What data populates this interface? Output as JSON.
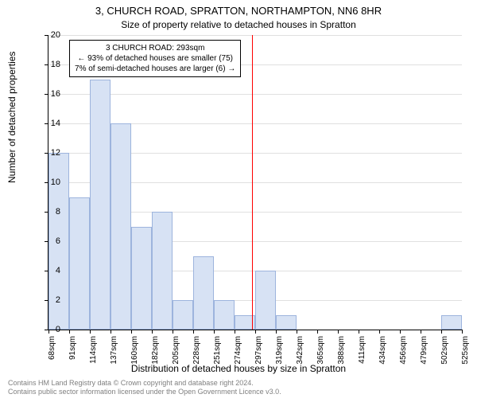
{
  "chart": {
    "type": "histogram",
    "title_main": "3, CHURCH ROAD, SPRATTON, NORTHAMPTON, NN6 8HR",
    "title_sub": "Size of property relative to detached houses in Spratton",
    "x_axis_label": "Distribution of detached houses by size in Spratton",
    "y_axis_label": "Number of detached properties",
    "background_color": "#ffffff",
    "grid_color": "#e0e0e0",
    "bar_fill": "#d7e2f4",
    "bar_border": "#9db4dd",
    "ref_line_color": "#ff0000",
    "ylim": [
      0,
      20
    ],
    "ytick_step": 2,
    "x_ticks": [
      "68sqm",
      "91sqm",
      "114sqm",
      "137sqm",
      "160sqm",
      "182sqm",
      "205sqm",
      "228sqm",
      "251sqm",
      "274sqm",
      "297sqm",
      "319sqm",
      "342sqm",
      "365sqm",
      "388sqm",
      "411sqm",
      "434sqm",
      "456sqm",
      "479sqm",
      "502sqm",
      "525sqm"
    ],
    "values": [
      12,
      9,
      17,
      14,
      7,
      8,
      2,
      5,
      2,
      1,
      4,
      1,
      0,
      0,
      0,
      0,
      0,
      0,
      0,
      1
    ],
    "ref_value_x": 293,
    "x_min": 68,
    "x_max": 525,
    "annotation": {
      "line1": "3 CHURCH ROAD: 293sqm",
      "line2": "← 93% of detached houses are smaller (75)",
      "line3": "7% of semi-detached houses are larger (6) →"
    },
    "footer_line1": "Contains HM Land Registry data © Crown copyright and database right 2024.",
    "footer_line2": "Contains public sector information licensed under the Open Government Licence v3.0.",
    "title_fontsize": 13,
    "label_fontsize": 12,
    "tick_fontsize": 11
  }
}
